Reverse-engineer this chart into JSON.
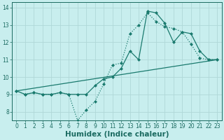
{
  "line_dotted": {
    "x": [
      0,
      1,
      2,
      3,
      4,
      5,
      6,
      7,
      8,
      9,
      10,
      11,
      12,
      13,
      14,
      15,
      16,
      17,
      18,
      19,
      20,
      21,
      22,
      23
    ],
    "y": [
      9.2,
      9.0,
      9.1,
      9.0,
      9.0,
      9.1,
      9.0,
      7.5,
      8.1,
      8.6,
      9.6,
      10.7,
      10.8,
      12.5,
      13.0,
      13.7,
      13.2,
      12.9,
      12.8,
      12.6,
      11.9,
      11.1,
      11.0,
      11.0
    ],
    "color": "#1a7a6e",
    "linestyle": "dotted",
    "linewidth": 0.9,
    "marker": "D",
    "markersize": 2.0
  },
  "line_solid": {
    "x": [
      0,
      1,
      2,
      3,
      4,
      5,
      6,
      7,
      8,
      9,
      10,
      11,
      12,
      13,
      14,
      15,
      16,
      17,
      18,
      19,
      20,
      21,
      22,
      23
    ],
    "y": [
      9.2,
      9.0,
      9.1,
      9.0,
      9.0,
      9.1,
      9.0,
      9.0,
      9.0,
      9.5,
      9.9,
      10.0,
      10.5,
      11.5,
      11.0,
      13.8,
      13.7,
      13.1,
      12.0,
      12.6,
      12.5,
      11.5,
      11.0,
      11.0
    ],
    "color": "#1a7a6e",
    "linestyle": "solid",
    "linewidth": 0.9,
    "marker": "D",
    "markersize": 2.0
  },
  "line_diag": {
    "x": [
      0,
      23
    ],
    "y": [
      9.2,
      11.0
    ],
    "color": "#1a7a6e",
    "linestyle": "solid",
    "linewidth": 0.9
  },
  "background_color": "#c8eeee",
  "grid_color": "#b0d8d8",
  "axis_color": "#1a6a60",
  "xlabel": "Humidex (Indice chaleur)",
  "xlim": [
    -0.5,
    23.5
  ],
  "ylim": [
    7.5,
    14.3
  ],
  "xticks": [
    0,
    1,
    2,
    3,
    4,
    5,
    6,
    7,
    8,
    9,
    10,
    11,
    12,
    13,
    14,
    15,
    16,
    17,
    18,
    19,
    20,
    21,
    22,
    23
  ],
  "yticks": [
    8,
    9,
    10,
    11,
    12,
    13,
    14
  ],
  "tick_fontsize": 5.5,
  "label_fontsize": 7.5
}
